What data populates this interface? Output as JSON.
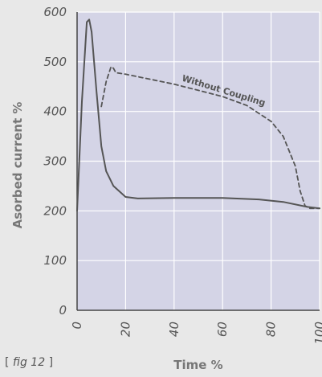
{
  "chart_data": {
    "type": "line",
    "xlabel": "Time %",
    "ylabel": "Asorbed current %",
    "xlim": [
      0,
      100
    ],
    "ylim": [
      0,
      600
    ],
    "x_ticks": [
      "0",
      "20",
      "40",
      "60",
      "80",
      "100"
    ],
    "y_ticks": [
      "0",
      "100",
      "200",
      "300",
      "400",
      "500",
      "600"
    ],
    "grid": true,
    "series": [
      {
        "style": "solid",
        "color": "#555555",
        "points": [
          [
            0,
            200
          ],
          [
            2,
            420
          ],
          [
            4,
            580
          ],
          [
            5,
            585
          ],
          [
            6,
            560
          ],
          [
            8,
            440
          ],
          [
            10,
            330
          ],
          [
            12,
            280
          ],
          [
            15,
            250
          ],
          [
            20,
            228
          ],
          [
            25,
            225
          ],
          [
            40,
            226
          ],
          [
            60,
            226
          ],
          [
            75,
            223
          ],
          [
            85,
            218
          ],
          [
            95,
            208
          ],
          [
            100,
            205
          ]
        ]
      },
      {
        "name": "Without Coupling",
        "style": "dashed",
        "color": "#555555",
        "points": [
          [
            10,
            410
          ],
          [
            12,
            460
          ],
          [
            14,
            490
          ],
          [
            15,
            487
          ],
          [
            16,
            478
          ],
          [
            20,
            475
          ],
          [
            40,
            455
          ],
          [
            60,
            430
          ],
          [
            70,
            412
          ],
          [
            80,
            380
          ],
          [
            85,
            350
          ],
          [
            90,
            290
          ],
          [
            92,
            240
          ],
          [
            94,
            210
          ],
          [
            96,
            205
          ],
          [
            100,
            205
          ]
        ]
      }
    ],
    "annotations": [
      {
        "text": "Without Coupling",
        "x": 43,
        "y": 462
      }
    ],
    "colors": {
      "plot_bg": "#d4d4e6",
      "page_bg": "#e8e8e8",
      "line": "#555555",
      "grid": "#ffffff"
    }
  },
  "fig_label": {
    "prefix": "[ ",
    "text": "fig 12",
    "suffix": " ]"
  }
}
